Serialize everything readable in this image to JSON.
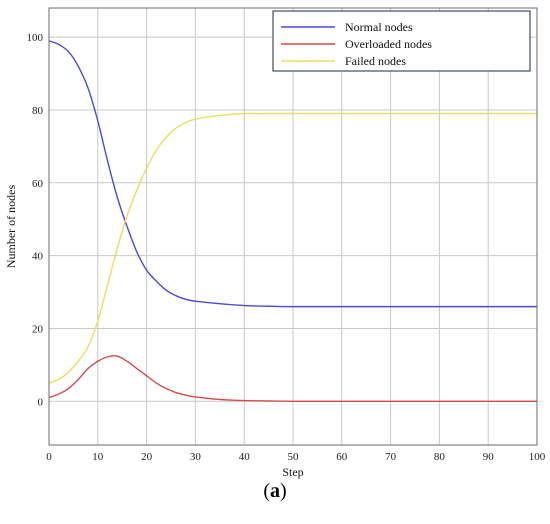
{
  "caption": {
    "open": "(",
    "letter": "a",
    "close": ")"
  },
  "colors": {
    "normal": "#4a4adc",
    "overloaded": "#d64a4a",
    "failed": "#f0dc5a",
    "grid": "#c8c8c8",
    "frame": "#6b6b6b"
  },
  "chart_data": {
    "type": "line",
    "xlabel": "Step",
    "ylabel": "Number of nodes",
    "xlim": [
      0,
      100
    ],
    "ylim": [
      -12,
      108
    ],
    "xticks": [
      0,
      10,
      20,
      30,
      40,
      50,
      60,
      70,
      80,
      90,
      100
    ],
    "yticks": [
      0,
      20,
      40,
      60,
      80,
      100
    ],
    "grid": true,
    "legend_position": "top-right",
    "x": [
      0,
      2,
      4,
      6,
      8,
      10,
      12,
      14,
      16,
      18,
      20,
      22,
      24,
      26,
      28,
      30,
      35,
      40,
      45,
      50,
      60,
      70,
      80,
      90,
      100
    ],
    "series": [
      {
        "name": "Normal nodes",
        "color": "#4a4adc",
        "values": [
          99,
          98,
          96,
          92,
          86,
          77,
          66,
          56,
          48,
          41,
          36,
          33,
          30.5,
          29,
          28,
          27.5,
          26.8,
          26.3,
          26.1,
          26,
          26,
          26,
          26,
          26,
          26
        ]
      },
      {
        "name": "Overloaded nodes",
        "color": "#d64a4a",
        "values": [
          1,
          2,
          3.5,
          6,
          9,
          11,
          12.2,
          12.4,
          11,
          9,
          7,
          5,
          3.5,
          2.4,
          1.7,
          1.2,
          0.5,
          0.2,
          0.1,
          0,
          0,
          0,
          0,
          0,
          0
        ]
      },
      {
        "name": "Failed nodes",
        "color": "#f0dc5a",
        "values": [
          5,
          6,
          8,
          11,
          15,
          22,
          32,
          42,
          51,
          58,
          64,
          69,
          72.5,
          75,
          76.5,
          77.5,
          78.5,
          79,
          79,
          79,
          79,
          79,
          79,
          79,
          79
        ]
      }
    ]
  }
}
